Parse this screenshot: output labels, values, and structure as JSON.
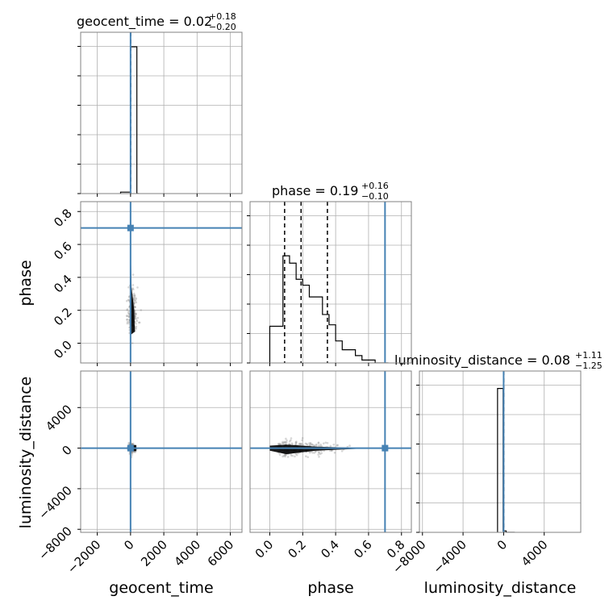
{
  "titles": {
    "geocent_time": {
      "value": "geocent_time = 0.02",
      "plus": "+0.18",
      "minus": "−0.20"
    },
    "phase": {
      "value": "phase = 0.19",
      "plus": "+0.16",
      "minus": "−0.10"
    },
    "luminosity_distance": {
      "value": "luminosity_distance = 0.08",
      "plus": "+1.11",
      "minus": "−1.25"
    }
  },
  "axis_labels": {
    "geocent_time": "geocent_time",
    "phase": "phase",
    "luminosity_distance": "luminosity_distance"
  },
  "colors": {
    "truth": "#4682b4",
    "hist": "#000000",
    "samples": "#8c8c8c",
    "grid": "#b0b0b0"
  },
  "chart_data": {
    "type": "corner",
    "parameters": [
      "geocent_time",
      "phase",
      "luminosity_distance"
    ],
    "ranges": {
      "geocent_time": [
        -3000,
        6700
      ],
      "phase": [
        -0.12,
        0.86
      ],
      "luminosity_distance": [
        -8300,
        7600
      ]
    },
    "ticks": {
      "geocent_time": {
        "values": [
          -2000,
          0,
          2000,
          4000,
          6000
        ],
        "labels": [
          "−2000",
          "0",
          "2000",
          "4000",
          "6000"
        ]
      },
      "phase": {
        "values": [
          0.0,
          0.2,
          0.4,
          0.6,
          0.8
        ],
        "labels": [
          "0.0",
          "0.2",
          "0.4",
          "0.6",
          "0.8"
        ]
      },
      "luminosity_distance": {
        "values": [
          -8000,
          -4000,
          0,
          4000
        ],
        "labels": [
          "−8000",
          "−4000",
          "0",
          "4000"
        ]
      }
    },
    "truths": {
      "geocent_time": 0,
      "phase": 0.7,
      "luminosity_distance": 0
    },
    "quantiles": {
      "geocent_time": [
        -0.18,
        0.02,
        0.2
      ],
      "phase": [
        0.09,
        0.19,
        0.35
      ],
      "luminosity_distance": [
        -1.17,
        0.08,
        1.19
      ]
    },
    "histograms": {
      "geocent_time": {
        "edges": [
          -600,
          -100,
          0,
          380,
          500
        ],
        "counts": [
          0.01,
          0.01,
          1.0,
          0.0
        ]
      },
      "phase": {
        "edges": [
          0.0,
          0.04,
          0.08,
          0.12,
          0.16,
          0.2,
          0.24,
          0.28,
          0.32,
          0.36,
          0.4,
          0.44,
          0.48,
          0.52,
          0.56,
          0.6,
          0.64,
          0.68,
          0.72
        ],
        "counts": [
          0.25,
          0.25,
          0.73,
          0.68,
          0.57,
          0.53,
          0.45,
          0.45,
          0.33,
          0.26,
          0.15,
          0.09,
          0.09,
          0.05,
          0.02,
          0.02,
          0.0,
          0.0
        ]
      },
      "luminosity_distance": {
        "edges": [
          -600,
          -50,
          250,
          1100
        ],
        "counts": [
          0.98,
          0.01,
          0.0
        ]
      }
    },
    "grid": true
  }
}
